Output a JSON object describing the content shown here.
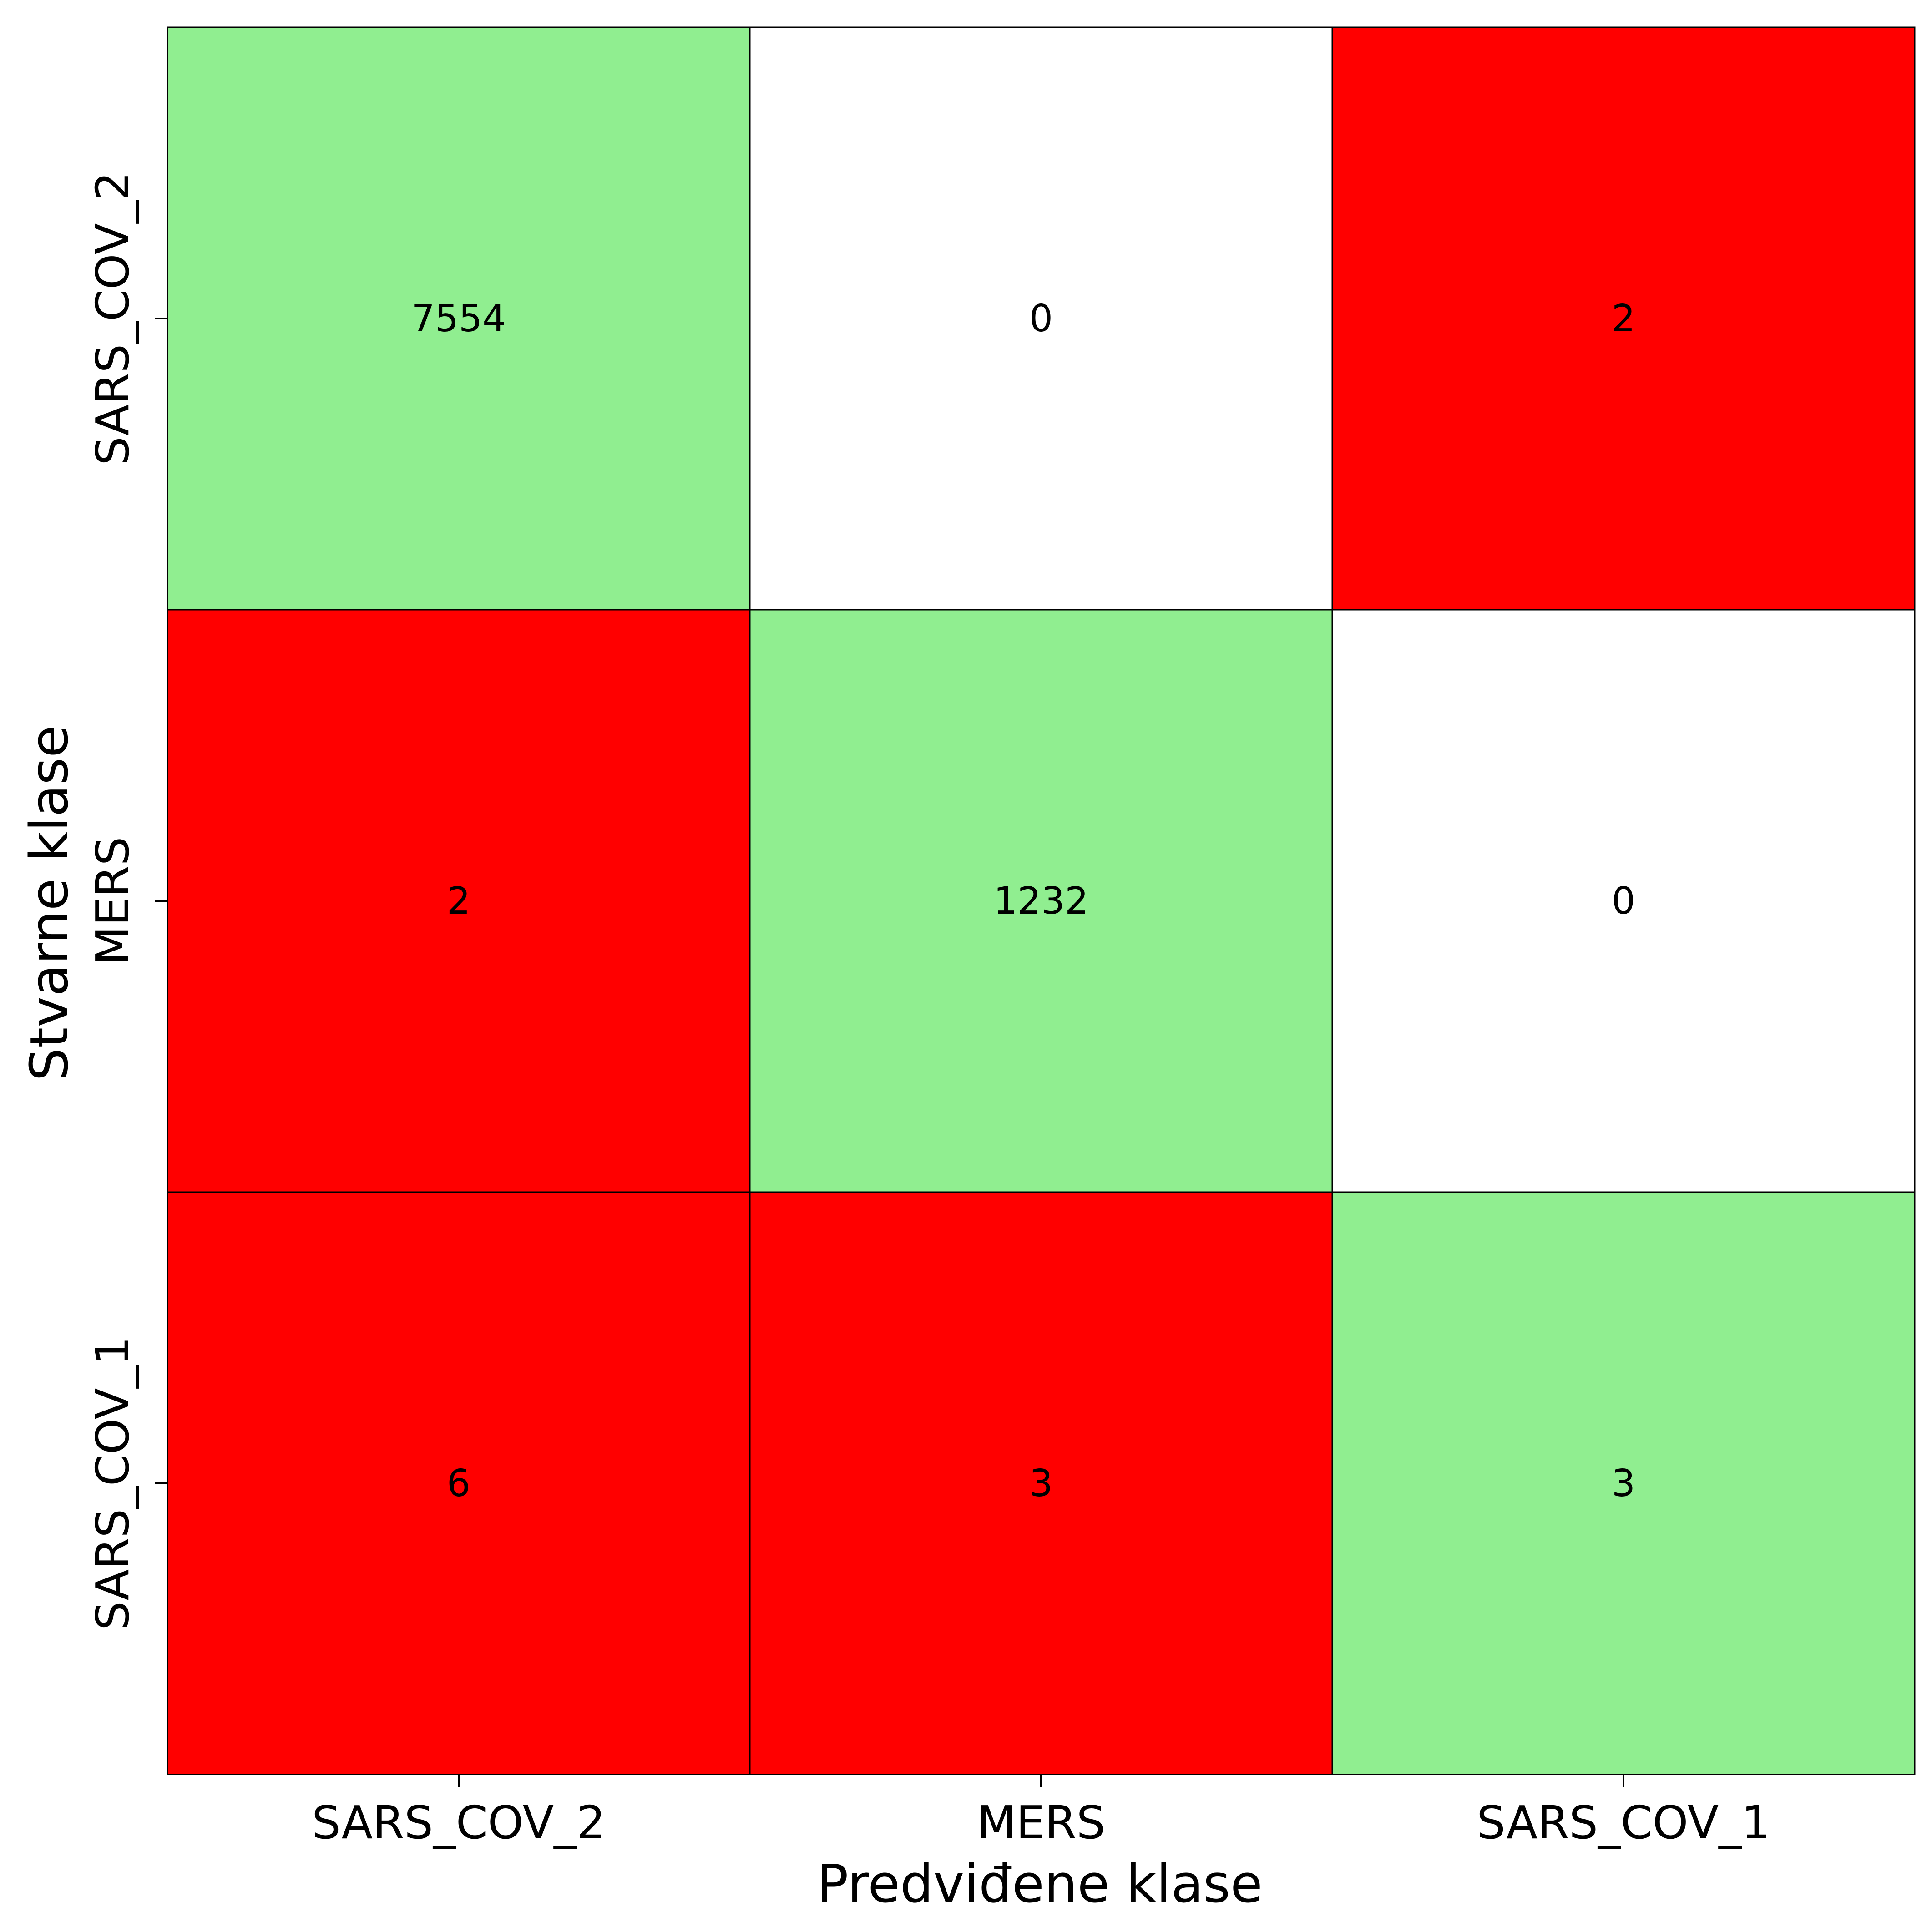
{
  "chart_data": {
    "type": "heatmap",
    "title": "",
    "xlabel": "Predviđene klase",
    "ylabel": "Stvarne klase",
    "x_categories": [
      "SARS_COV_2",
      "MERS",
      "SARS_COV_1"
    ],
    "y_categories": [
      "SARS_COV_2",
      "MERS",
      "SARS_COV_1"
    ],
    "values": [
      [
        7554,
        0,
        2
      ],
      [
        2,
        1232,
        0
      ],
      [
        6,
        3,
        3
      ]
    ],
    "colors": {
      "diagonal": "#90ee90",
      "nonzero_error": "#ff0000",
      "zero": "#ffffff",
      "grid_line": "#000000"
    },
    "grid": false,
    "legend": "none"
  }
}
